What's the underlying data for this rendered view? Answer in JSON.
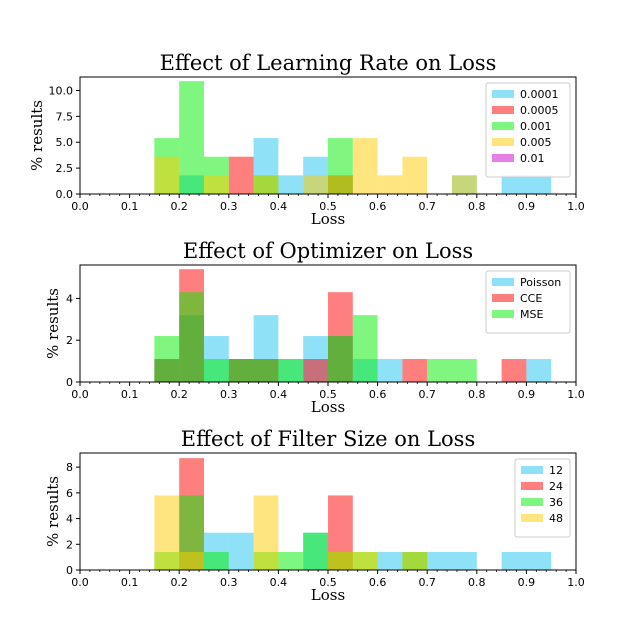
{
  "chart_data": [
    {
      "type": "bar",
      "title": "Effect of Learning Rate on Loss",
      "xlabel": "Loss",
      "ylabel": "% results",
      "xlim": [
        0.0,
        1.0
      ],
      "ylim": [
        0,
        11.3
      ],
      "xticks": [
        "0.0",
        "0.1",
        "0.2",
        "0.3",
        "0.4",
        "0.5",
        "0.6",
        "0.7",
        "0.8",
        "0.9",
        "1.0"
      ],
      "yticks": [
        "0.0",
        "2.5",
        "5.0",
        "7.5",
        "10.0"
      ],
      "ytick_values": [
        0,
        2.5,
        5,
        7.5,
        10
      ],
      "bin_edges": [
        0.15,
        0.2,
        0.25,
        0.3,
        0.35,
        0.4,
        0.45,
        0.5,
        0.55,
        0.6,
        0.65,
        0.7,
        0.75,
        0.8,
        0.85,
        0.9,
        0.95
      ],
      "legend_position": "top-right",
      "series": [
        {
          "name": "0.0001",
          "color": "#1ec3f0",
          "values": [
            0,
            1.8,
            0,
            0,
            5.4,
            1.8,
            3.6,
            1.8,
            0,
            0,
            0,
            0,
            1.8,
            0,
            1.8,
            1.8
          ]
        },
        {
          "name": "0.0005",
          "color": "#ff0000",
          "values": [
            0,
            0,
            0,
            3.6,
            0,
            0,
            0,
            1.8,
            0,
            0,
            0,
            0,
            0,
            0,
            0,
            0
          ]
        },
        {
          "name": "0.001",
          "color": "#00ee00",
          "values": [
            5.4,
            10.9,
            3.6,
            0,
            1.8,
            0,
            0,
            5.4,
            0,
            0,
            0,
            0,
            0,
            0,
            0,
            0
          ]
        },
        {
          "name": "0.005",
          "color": "#ffcc00",
          "values": [
            3.6,
            0,
            1.8,
            0,
            1.8,
            0,
            1.8,
            1.8,
            5.4,
            1.8,
            3.6,
            0,
            1.8,
            0,
            0,
            0
          ]
        },
        {
          "name": "0.01",
          "color": "#cc00cc",
          "values": [
            0,
            0,
            0,
            0,
            0,
            0,
            0,
            0,
            0,
            0,
            0,
            0,
            0,
            0,
            0,
            0
          ]
        }
      ]
    },
    {
      "type": "bar",
      "title": "Effect of Optimizer on Loss",
      "xlabel": "Loss",
      "ylabel": "% results",
      "xlim": [
        0.0,
        1.0
      ],
      "ylim": [
        0,
        5.6
      ],
      "xticks": [
        "0.0",
        "0.1",
        "0.2",
        "0.3",
        "0.4",
        "0.5",
        "0.6",
        "0.7",
        "0.8",
        "0.9",
        "1.0"
      ],
      "yticks": [
        "0",
        "2",
        "4"
      ],
      "ytick_values": [
        0,
        2,
        4
      ],
      "bin_edges": [
        0.15,
        0.2,
        0.25,
        0.3,
        0.35,
        0.4,
        0.45,
        0.5,
        0.55,
        0.6,
        0.65,
        0.7,
        0.75,
        0.8,
        0.85,
        0.9,
        0.95
      ],
      "legend_position": "top-right",
      "series": [
        {
          "name": "Poisson",
          "color": "#1ec3f0",
          "values": [
            1.1,
            3.2,
            2.2,
            1.1,
            3.2,
            1.1,
            2.2,
            2.2,
            1.1,
            1.1,
            0,
            0,
            0,
            0,
            0,
            1.1
          ]
        },
        {
          "name": "CCE",
          "color": "#ff0000",
          "values": [
            1.1,
            5.4,
            0,
            1.1,
            1.1,
            0,
            1.1,
            4.3,
            0,
            0,
            1.1,
            0,
            0,
            0,
            1.1,
            0
          ]
        },
        {
          "name": "MSE",
          "color": "#00ee00",
          "values": [
            2.2,
            4.3,
            1.1,
            1.1,
            1.1,
            1.1,
            0,
            2.2,
            3.2,
            0,
            0,
            1.1,
            1.1,
            0,
            0,
            0
          ]
        }
      ]
    },
    {
      "type": "bar",
      "title": "Effect of Filter Size on Loss",
      "xlabel": "Loss",
      "ylabel": "% results",
      "xlim": [
        0.0,
        1.0
      ],
      "ylim": [
        0,
        9.1
      ],
      "xticks": [
        "0.0",
        "0.1",
        "0.2",
        "0.3",
        "0.4",
        "0.5",
        "0.6",
        "0.7",
        "0.8",
        "0.9",
        "1.0"
      ],
      "yticks": [
        "0",
        "2",
        "4",
        "6",
        "8"
      ],
      "ytick_values": [
        0,
        2,
        4,
        6,
        8
      ],
      "bin_edges": [
        0.15,
        0.2,
        0.25,
        0.3,
        0.35,
        0.4,
        0.45,
        0.5,
        0.55,
        0.6,
        0.65,
        0.7,
        0.75,
        0.8,
        0.85,
        0.9,
        0.95
      ],
      "legend_position": "top-right",
      "series": [
        {
          "name": "12",
          "color": "#1ec3f0",
          "values": [
            0,
            0,
            2.9,
            2.9,
            0,
            0,
            2.9,
            0,
            0,
            1.4,
            1.4,
            1.4,
            1.4,
            0,
            1.4,
            1.4
          ]
        },
        {
          "name": "24",
          "color": "#ff0000",
          "values": [
            0,
            8.7,
            0,
            0,
            0,
            0,
            0,
            5.8,
            0,
            0,
            0,
            0,
            0,
            0,
            0,
            0
          ]
        },
        {
          "name": "36",
          "color": "#00ee00",
          "values": [
            1.4,
            5.8,
            1.4,
            0,
            1.4,
            1.4,
            2.9,
            1.4,
            1.4,
            0,
            1.4,
            0,
            0,
            0,
            0,
            0
          ]
        },
        {
          "name": "48",
          "color": "#ffcc00",
          "values": [
            5.8,
            1.4,
            0,
            0,
            5.8,
            0,
            0,
            1.4,
            1.4,
            0,
            1.4,
            0,
            0,
            0,
            0,
            0
          ]
        }
      ]
    }
  ]
}
